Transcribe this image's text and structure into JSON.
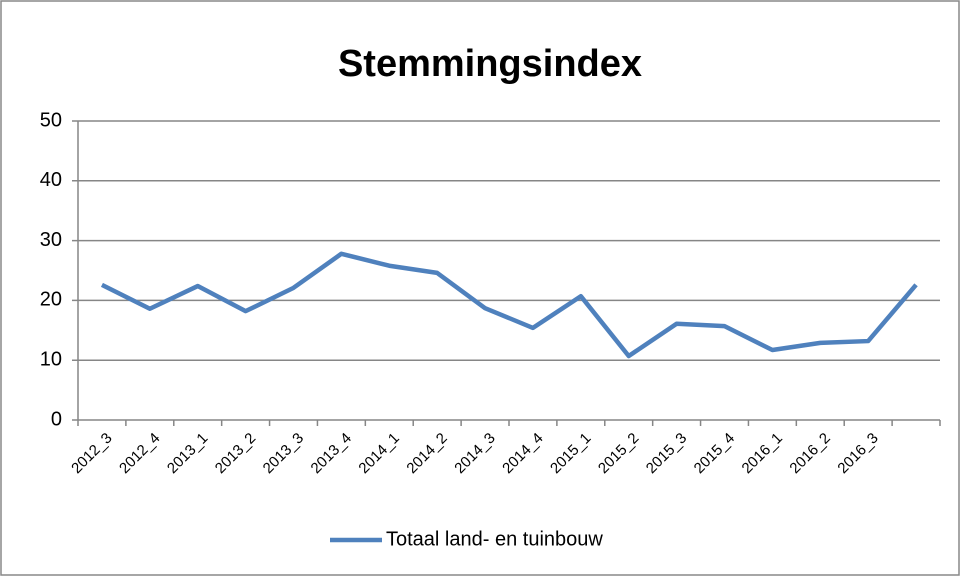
{
  "chart_data": {
    "type": "line",
    "title": "Stemmingsindex",
    "categories": [
      "2012_3",
      "2012_4",
      "2013_1",
      "2013_2",
      "2013_3",
      "2013_4",
      "2014_1",
      "2014_2",
      "2014_3",
      "2014_4",
      "2015_1",
      "2015_2",
      "2015_3",
      "2015_4",
      "2016_1",
      "2016_2",
      "2016_3",
      null
    ],
    "series": [
      {
        "name": "Totaal land- en tuinbouw",
        "color": "#4f81bd",
        "values": [
          22.6,
          18.6,
          22.4,
          18.2,
          22.1,
          27.8,
          25.8,
          24.6,
          18.7,
          15.4,
          20.7,
          10.7,
          16.1,
          15.7,
          11.7,
          12.9,
          13.2,
          22.6
        ]
      }
    ],
    "ylim": [
      0,
      50
    ],
    "yticks": [
      0,
      10,
      20,
      30,
      40,
      50
    ],
    "grid": true,
    "legend": "bottom"
  }
}
